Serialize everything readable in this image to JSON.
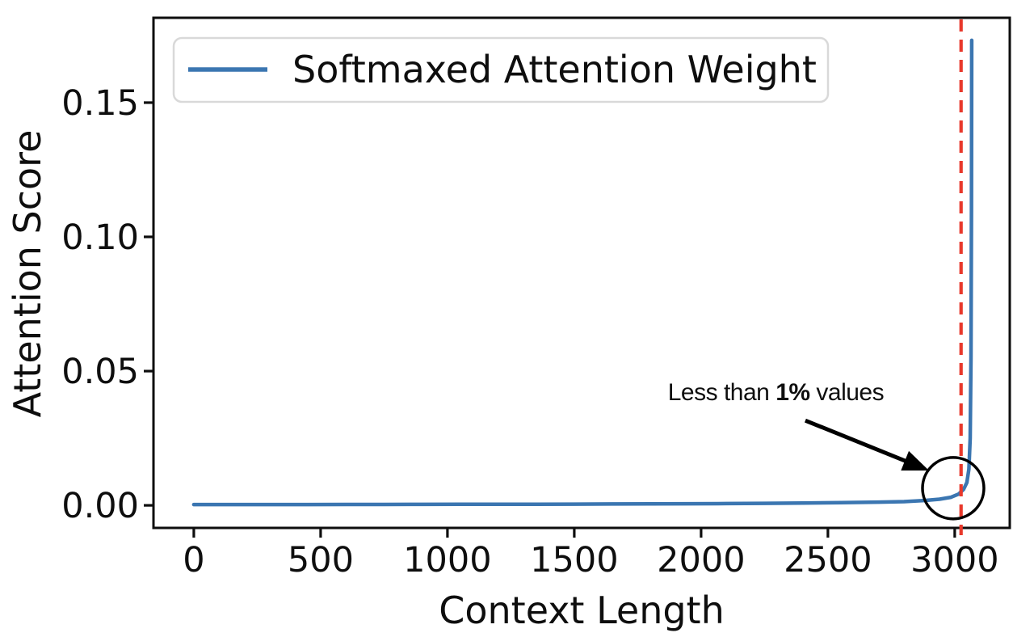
{
  "chart_data": {
    "type": "line",
    "title": "",
    "xlabel": "Context Length",
    "ylabel": "Attention Score",
    "xlim": [
      -159,
      3217
    ],
    "ylim": [
      -0.0084,
      0.1816
    ],
    "xticks": [
      0,
      500,
      1000,
      1500,
      2000,
      2500,
      3000
    ],
    "xtick_labels": [
      "0",
      "500",
      "1000",
      "1500",
      "2000",
      "2500",
      "3000"
    ],
    "yticks": [
      0,
      0.05,
      0.1,
      0.15
    ],
    "ytick_labels": [
      "0.00",
      "0.05",
      "0.10",
      "0.15"
    ],
    "grid": false,
    "axis_color": "#0e0e0e",
    "legend": {
      "label": "Softmaxed Attention Weight",
      "position": "upper left",
      "border_color": "#d9d9d9",
      "background": "#ffffff"
    },
    "series": [
      {
        "name": "Softmaxed Attention Weight",
        "color": "#3b76b1",
        "x": [
          0,
          150,
          300,
          450,
          600,
          750,
          900,
          1050,
          1200,
          1350,
          1500,
          1650,
          1800,
          1950,
          2100,
          2250,
          2400,
          2550,
          2700,
          2800,
          2880,
          2940,
          2985,
          3015,
          3035,
          3048,
          3056,
          3061,
          3064,
          3066,
          3067
        ],
        "y": [
          0.0003,
          0.0003,
          0.0003,
          0.0003,
          0.00032,
          0.00034,
          0.00036,
          0.00038,
          0.0004,
          0.00043,
          0.00046,
          0.0005,
          0.00055,
          0.0006,
          0.00067,
          0.00075,
          0.00085,
          0.001,
          0.0012,
          0.0014,
          0.0018,
          0.0023,
          0.003,
          0.0042,
          0.006,
          0.0085,
          0.0135,
          0.025,
          0.055,
          0.11,
          0.1732
        ]
      }
    ],
    "peak_value": 0.173,
    "vline": {
      "x": 3025,
      "color": "#e8392c",
      "style": "dashed",
      "dash": [
        15,
        10
      ]
    },
    "annotations": {
      "label": {
        "text_parts": [
          {
            "text": "Less than ",
            "bold": false
          },
          {
            "text": "1%",
            "bold": true
          },
          {
            "text": " values",
            "bold": false
          }
        ],
        "full_text": "Less than 1% values",
        "x": 1869,
        "y": 0.0392,
        "color": "#000000"
      },
      "arrow": {
        "from_x": 2411,
        "from_y": 0.0316,
        "to_x": 2898,
        "to_y": 0.013,
        "color": "#000000"
      },
      "circle": {
        "x": 2994,
        "y": 0.0064,
        "radius_px": 38,
        "color": "#000000"
      }
    }
  }
}
